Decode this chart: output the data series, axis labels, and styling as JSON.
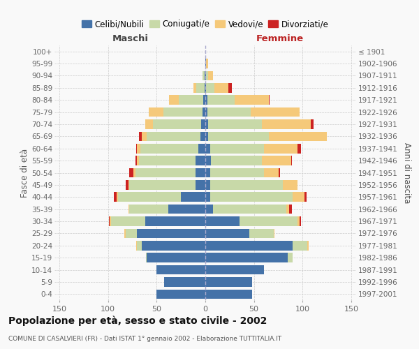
{
  "age_groups": [
    "0-4",
    "5-9",
    "10-14",
    "15-19",
    "20-24",
    "25-29",
    "30-34",
    "35-39",
    "40-44",
    "45-49",
    "50-54",
    "55-59",
    "60-64",
    "65-69",
    "70-74",
    "75-79",
    "80-84",
    "85-89",
    "90-94",
    "95-99",
    "100+"
  ],
  "birth_years": [
    "1997-2001",
    "1992-1996",
    "1987-1991",
    "1982-1986",
    "1977-1981",
    "1972-1976",
    "1967-1971",
    "1962-1966",
    "1957-1961",
    "1952-1956",
    "1947-1951",
    "1942-1946",
    "1937-1941",
    "1932-1936",
    "1927-1931",
    "1922-1926",
    "1917-1921",
    "1912-1916",
    "1907-1911",
    "1902-1906",
    "≤ 1901"
  ],
  "males_celibi": [
    50,
    42,
    50,
    60,
    65,
    70,
    62,
    38,
    25,
    10,
    10,
    10,
    7,
    5,
    4,
    3,
    2,
    1,
    1,
    0,
    0
  ],
  "males_coniugati": [
    0,
    0,
    0,
    1,
    5,
    12,
    35,
    40,
    65,
    68,
    62,
    58,
    60,
    55,
    50,
    40,
    25,
    8,
    2,
    0,
    0
  ],
  "males_vedovi": [
    0,
    0,
    0,
    0,
    1,
    1,
    1,
    1,
    1,
    1,
    2,
    2,
    3,
    5,
    8,
    15,
    10,
    3,
    0,
    0,
    0
  ],
  "males_divorziati": [
    0,
    0,
    0,
    0,
    0,
    0,
    1,
    0,
    3,
    3,
    4,
    2,
    1,
    3,
    0,
    0,
    0,
    0,
    0,
    0,
    0
  ],
  "females_nubili": [
    48,
    48,
    60,
    85,
    90,
    45,
    35,
    8,
    5,
    5,
    5,
    6,
    5,
    3,
    3,
    2,
    2,
    1,
    1,
    1,
    0
  ],
  "females_coniugate": [
    0,
    0,
    0,
    5,
    15,
    25,
    60,
    75,
    85,
    75,
    55,
    52,
    55,
    62,
    55,
    45,
    28,
    8,
    2,
    0,
    0
  ],
  "females_vedove": [
    0,
    0,
    0,
    0,
    1,
    1,
    2,
    3,
    12,
    15,
    15,
    30,
    35,
    60,
    50,
    50,
    35,
    15,
    5,
    2,
    0
  ],
  "females_divorziate": [
    0,
    0,
    0,
    0,
    0,
    0,
    1,
    3,
    2,
    0,
    2,
    1,
    3,
    0,
    3,
    0,
    1,
    3,
    0,
    0,
    0
  ],
  "color_celibi": "#4472A8",
  "color_coniugati": "#C8D9A8",
  "color_vedovi": "#F5C97A",
  "color_divorziati": "#CC2222",
  "legend_labels": [
    "Celibi/Nubili",
    "Coniugati/e",
    "Vedovi/e",
    "Divorziati/e"
  ],
  "title": "Popolazione per età, sesso e stato civile - 2002",
  "subtitle": "COMUNE DI CASALVIERI (FR) - Dati ISTAT 1° gennaio 2002 - Elaborazione TUTTITALIA.IT",
  "label_maschi": "Maschi",
  "label_femmine": "Femmine",
  "label_fasce": "Fasce di età",
  "label_anni": "Anni di nascita",
  "xlim": 155,
  "bg_color": "#f9f9f9"
}
